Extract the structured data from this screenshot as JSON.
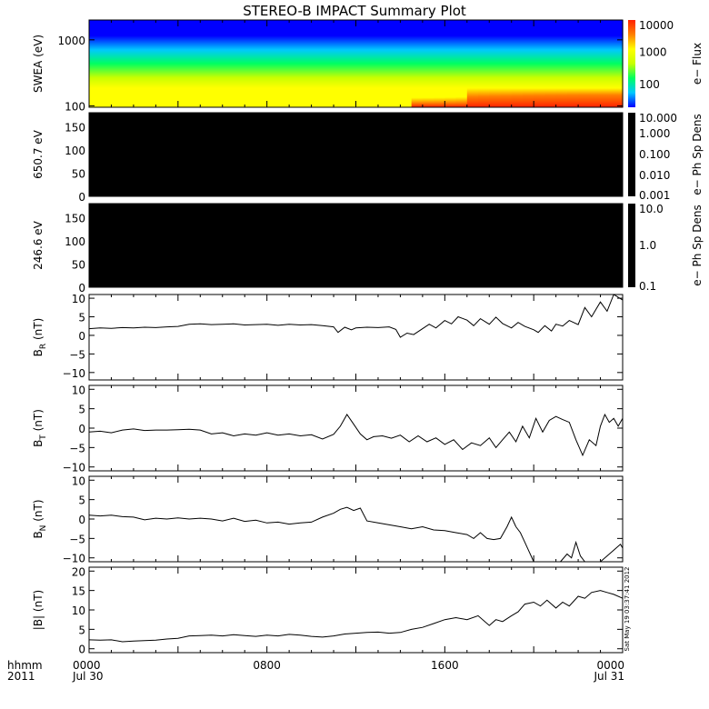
{
  "title": "STEREO-B IMPACT Summary Plot",
  "stamp": "Sat May 19 03:37:41 2012",
  "time_axis": {
    "corner_labels": [
      "hhmm",
      "2011"
    ],
    "ticks": [
      {
        "hhmm": "0000",
        "date": "Jul 30",
        "hour": 0
      },
      {
        "hhmm": "0800",
        "date": "",
        "hour": 8
      },
      {
        "hhmm": "1600",
        "date": "",
        "hour": 16
      },
      {
        "hhmm": "0000",
        "date": "Jul 31",
        "hour": 24
      }
    ],
    "range_hours": [
      0,
      24
    ]
  },
  "colors": {
    "line": "#000000",
    "background": "#ffffff",
    "pad_panel_fill": "#000000",
    "spectrogram_colormap": [
      "#0000ff",
      "#00c8ff",
      "#00ff60",
      "#c8ff00",
      "#ffff00",
      "#ff8000",
      "#ff2000"
    ]
  },
  "chart_data": [
    {
      "type": "heatmap",
      "ylabel": "SWEA (eV)",
      "y_scale": "log",
      "ylim": [
        95,
        2000
      ],
      "yticks": [
        {
          "value": 1000,
          "label": "1000"
        },
        {
          "value": 100,
          "label": "100"
        }
      ],
      "colorbar": {
        "label": "e− Flux",
        "scale": "log",
        "range": [
          20,
          10000
        ],
        "ticks": [
          {
            "value": 10000,
            "label": "10000"
          },
          {
            "value": 1000,
            "label": "1000"
          },
          {
            "value": 100,
            "label": "100"
          }
        ]
      },
      "trend_hours": [
        0,
        4,
        8,
        12,
        16,
        18,
        20,
        22,
        24
      ],
      "trend_level": [
        0.56,
        0.55,
        0.55,
        0.57,
        0.62,
        0.68,
        0.72,
        0.74,
        0.75
      ]
    },
    {
      "type": "heatmap",
      "ylabel": "650.7 eV",
      "ylim": [
        0,
        180
      ],
      "yticks": [
        {
          "value": 150,
          "label": "150"
        },
        {
          "value": 100,
          "label": "100"
        },
        {
          "value": 50,
          "label": "50"
        },
        {
          "value": 0,
          "label": "0"
        }
      ],
      "colorbar": {
        "label": "e− Ph Sp Dens",
        "scale": "log",
        "range": [
          0.001,
          10
        ],
        "ticks": [
          {
            "value": 10,
            "label": "10.000"
          },
          {
            "value": 1,
            "label": "1.000"
          },
          {
            "value": 0.1,
            "label": "0.100"
          },
          {
            "value": 0.01,
            "label": "0.010"
          },
          {
            "value": 0.001,
            "label": "0.001"
          }
        ]
      }
    },
    {
      "type": "heatmap",
      "ylabel": "246.6 eV",
      "ylim": [
        0,
        180
      ],
      "yticks": [
        {
          "value": 150,
          "label": "150"
        },
        {
          "value": 100,
          "label": "100"
        },
        {
          "value": 50,
          "label": "50"
        },
        {
          "value": 0,
          "label": "0"
        }
      ],
      "colorbar": {
        "label": "e− Ph Sp Dens",
        "scale": "log",
        "range": [
          0.1,
          10
        ],
        "ticks": [
          {
            "value": 10,
            "label": "10.0"
          },
          {
            "value": 1,
            "label": "1.0"
          },
          {
            "value": 0.1,
            "label": "0.1"
          }
        ]
      }
    },
    {
      "type": "line",
      "ylabel": "B",
      "ylabel_sub": "R",
      "ylabel_unit": "(nT)",
      "ylim": [
        -12,
        11
      ],
      "yticks": [
        {
          "value": 10,
          "label": "10"
        },
        {
          "value": 5,
          "label": "5"
        },
        {
          "value": 0,
          "label": "0"
        },
        {
          "value": -5,
          "label": "−5"
        },
        {
          "value": -10,
          "label": "−10"
        }
      ],
      "x": [
        0,
        0.5,
        1,
        1.5,
        2,
        2.5,
        3,
        3.5,
        4,
        4.5,
        5,
        5.5,
        6,
        6.5,
        7,
        7.5,
        8,
        8.5,
        9,
        9.5,
        10,
        10.5,
        11,
        11.2,
        11.5,
        11.8,
        12,
        12.5,
        13,
        13.5,
        13.8,
        14,
        14.3,
        14.6,
        15,
        15.3,
        15.6,
        16,
        16.3,
        16.6,
        17,
        17.3,
        17.6,
        18,
        18.3,
        18.6,
        19,
        19.3,
        19.6,
        20,
        20.2,
        20.5,
        20.8,
        21,
        21.3,
        21.6,
        22,
        22.3,
        22.6,
        23,
        23.3,
        23.6,
        24
      ],
      "y": [
        1.8,
        2.0,
        1.9,
        2.1,
        2.0,
        2.2,
        2.1,
        2.3,
        2.4,
        3.0,
        3.1,
        2.9,
        3.0,
        3.1,
        2.8,
        2.9,
        3.0,
        2.7,
        3.0,
        2.8,
        2.9,
        2.6,
        2.3,
        0.8,
        2.2,
        1.5,
        2.0,
        2.2,
        2.1,
        2.3,
        1.6,
        -0.5,
        0.6,
        0.2,
        1.8,
        3.0,
        2.0,
        4.0,
        3.1,
        5.0,
        4.1,
        2.6,
        4.5,
        3.0,
        4.9,
        3.2,
        2.0,
        3.5,
        2.4,
        1.5,
        0.8,
        2.6,
        1.2,
        3.0,
        2.5,
        4.0,
        2.9,
        7.5,
        5.0,
        9.0,
        6.5,
        11.0,
        9.5
      ]
    },
    {
      "type": "line",
      "ylabel": "B",
      "ylabel_sub": "T",
      "ylabel_unit": "(nT)",
      "ylim": [
        -11,
        11
      ],
      "yticks": [
        {
          "value": 10,
          "label": "10"
        },
        {
          "value": 5,
          "label": "5"
        },
        {
          "value": 0,
          "label": "0"
        },
        {
          "value": -5,
          "label": "−5"
        },
        {
          "value": -10,
          "label": "−10"
        }
      ],
      "x": [
        0,
        0.5,
        1,
        1.5,
        2,
        2.5,
        3,
        3.5,
        4,
        4.5,
        5,
        5.5,
        6,
        6.5,
        7,
        7.5,
        8,
        8.5,
        9,
        9.5,
        10,
        10.5,
        11,
        11.3,
        11.6,
        11.9,
        12.2,
        12.5,
        12.8,
        13.2,
        13.6,
        14,
        14.4,
        14.8,
        15.2,
        15.6,
        16,
        16.4,
        16.8,
        17.2,
        17.6,
        18,
        18.3,
        18.6,
        18.9,
        19.2,
        19.5,
        19.8,
        20.1,
        20.4,
        20.7,
        21,
        21.3,
        21.6,
        21.9,
        22.2,
        22.5,
        22.8,
        23,
        23.2,
        23.4,
        23.6,
        23.8,
        24
      ],
      "y": [
        -1.0,
        -0.8,
        -1.2,
        -0.5,
        -0.2,
        -0.6,
        -0.5,
        -0.5,
        -0.4,
        -0.3,
        -0.5,
        -1.5,
        -1.2,
        -2.0,
        -1.5,
        -1.8,
        -1.2,
        -1.8,
        -1.5,
        -2.0,
        -1.7,
        -2.8,
        -1.6,
        0.5,
        3.5,
        1.0,
        -1.5,
        -3.0,
        -2.2,
        -2.0,
        -2.6,
        -1.8,
        -3.5,
        -2.0,
        -3.5,
        -2.5,
        -4.2,
        -3.0,
        -5.5,
        -3.8,
        -4.5,
        -2.5,
        -5.0,
        -3.0,
        -1.0,
        -3.5,
        0.5,
        -2.5,
        2.5,
        -1.0,
        2.0,
        3.0,
        2.2,
        1.5,
        -3.0,
        -7.0,
        -3.0,
        -4.5,
        0.5,
        3.5,
        1.5,
        2.5,
        0.5,
        2.5
      ]
    },
    {
      "type": "line",
      "ylabel": "B",
      "ylabel_sub": "N",
      "ylabel_unit": "(nT)",
      "ylim": [
        -11,
        11
      ],
      "yticks": [
        {
          "value": 10,
          "label": "10"
        },
        {
          "value": 5,
          "label": "5"
        },
        {
          "value": 0,
          "label": "0"
        },
        {
          "value": -5,
          "label": "−5"
        },
        {
          "value": -10,
          "label": "−10"
        }
      ],
      "x": [
        0,
        0.5,
        1,
        1.5,
        2,
        2.5,
        3,
        3.5,
        4,
        4.5,
        5,
        5.5,
        6,
        6.5,
        7,
        7.5,
        8,
        8.5,
        9,
        9.5,
        10,
        10.5,
        11,
        11.3,
        11.6,
        11.9,
        12.2,
        12.5,
        13,
        13.5,
        14,
        14.5,
        15,
        15.5,
        16,
        16.5,
        17,
        17.3,
        17.6,
        17.9,
        18.2,
        18.5,
        18.8,
        19.0,
        19.2
      ],
      "y": [
        1.0,
        0.8,
        1.0,
        0.6,
        0.5,
        -0.2,
        0.2,
        0.0,
        0.3,
        0.0,
        0.2,
        0.0,
        -0.5,
        0.2,
        -0.6,
        -0.3,
        -1.0,
        -0.8,
        -1.3,
        -1.0,
        -0.8,
        0.5,
        1.5,
        2.5,
        3.0,
        2.2,
        2.8,
        -0.5,
        -1.0,
        -1.5,
        -2.0,
        -2.5,
        -2.0,
        -2.8,
        -3.0,
        -3.5,
        -4.0,
        -5.0,
        -3.5,
        -5.0,
        -5.3,
        -5.0,
        -2.0,
        0.5,
        -2.0
      ],
      "x2": [
        19.2,
        19.4,
        19.6,
        19.8,
        20.0
      ],
      "y2": [
        -2.0,
        -3.5,
        -6.0,
        -8.5,
        -11.0
      ],
      "x3": [
        21.2,
        21.5,
        21.7,
        21.9,
        22.1,
        22.3
      ],
      "y3": [
        -11.0,
        -9.0,
        -10.0,
        -6.0,
        -9.5,
        -11.0
      ],
      "x4": [
        23.0,
        23.3,
        23.6,
        23.9,
        24.0
      ],
      "y4": [
        -11.0,
        -9.5,
        -8.0,
        -6.5,
        -7.5
      ]
    },
    {
      "type": "line",
      "ylabel": "|B|",
      "ylabel_sub": "",
      "ylabel_unit": "(nT)",
      "ylim": [
        -1,
        21
      ],
      "yticks": [
        {
          "value": 20,
          "label": "20"
        },
        {
          "value": 15,
          "label": "15"
        },
        {
          "value": 10,
          "label": "10"
        },
        {
          "value": 5,
          "label": "5"
        },
        {
          "value": 0,
          "label": "0"
        }
      ],
      "x": [
        0,
        0.5,
        1,
        1.5,
        2,
        2.5,
        3,
        3.5,
        4,
        4.5,
        5,
        5.5,
        6,
        6.5,
        7,
        7.5,
        8,
        8.5,
        9,
        9.5,
        10,
        10.5,
        11,
        11.5,
        12,
        12.5,
        13,
        13.5,
        14,
        14.5,
        15,
        15.5,
        16,
        16.5,
        17,
        17.5,
        18,
        18.3,
        18.6,
        19,
        19.3,
        19.6,
        20,
        20.3,
        20.6,
        21,
        21.3,
        21.6,
        22,
        22.3,
        22.6,
        23,
        23.3,
        23.6,
        24
      ],
      "y": [
        2.3,
        2.2,
        2.3,
        1.8,
        2.0,
        2.1,
        2.2,
        2.5,
        2.7,
        3.3,
        3.4,
        3.5,
        3.3,
        3.6,
        3.4,
        3.2,
        3.5,
        3.3,
        3.7,
        3.5,
        3.2,
        3.0,
        3.3,
        3.8,
        4.0,
        4.2,
        4.3,
        4.0,
        4.2,
        5.0,
        5.5,
        6.5,
        7.5,
        8.0,
        7.5,
        8.5,
        6.0,
        7.5,
        7.0,
        8.5,
        9.5,
        11.5,
        12.0,
        11.0,
        12.5,
        10.5,
        12.0,
        11.0,
        13.5,
        13.0,
        14.5,
        15.0,
        14.5,
        14.0,
        13.0
      ]
    }
  ]
}
